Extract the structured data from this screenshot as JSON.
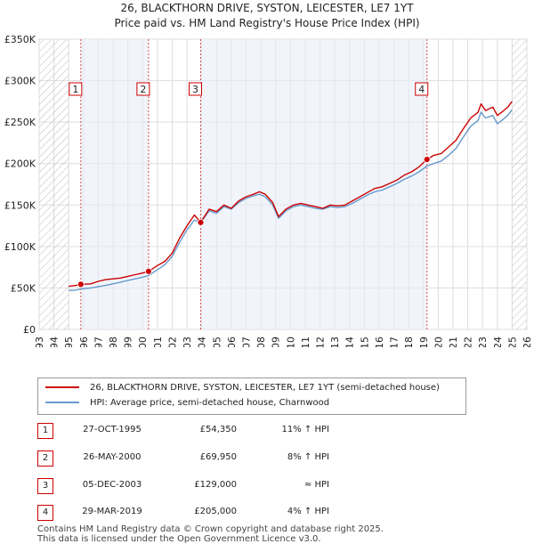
{
  "chart_data": {
    "type": "line",
    "title": "26, BLACKTHORN DRIVE, SYSTON, LEICESTER, LE7 1YT",
    "subtitle": "Price paid vs. HM Land Registry's House Price Index (HPI)",
    "xlim": [
      1993,
      2026
    ],
    "ylim": [
      0,
      350000
    ],
    "x_ticks": [
      "1993",
      "1994",
      "1995",
      "1996",
      "1997",
      "1998",
      "1999",
      "2000",
      "2001",
      "2002",
      "2003",
      "2004",
      "2005",
      "2006",
      "2007",
      "2008",
      "2009",
      "2010",
      "2011",
      "2012",
      "2013",
      "2014",
      "2015",
      "2016",
      "2017",
      "2018",
      "2019",
      "2020",
      "2021",
      "2022",
      "2023",
      "2024",
      "2025",
      "2026"
    ],
    "y_ticks": [
      {
        "value": 0,
        "label": "£0"
      },
      {
        "value": 50000,
        "label": "£50K"
      },
      {
        "value": 100000,
        "label": "£100K"
      },
      {
        "value": 150000,
        "label": "£150K"
      },
      {
        "value": 200000,
        "label": "£200K"
      },
      {
        "value": 250000,
        "label": "£250K"
      },
      {
        "value": 300000,
        "label": "£300K"
      },
      {
        "value": 350000,
        "label": "£350K"
      }
    ],
    "hatched_ranges": [
      [
        1993,
        1995.0
      ],
      [
        2025.0,
        2026
      ]
    ],
    "shaded_ranges": [
      [
        1995.82,
        2000.4
      ],
      [
        2003.93,
        2019.24
      ]
    ],
    "series": [
      {
        "name": "26, BLACKTHORN DRIVE, SYSTON, LEICESTER, LE7 1YT (semi-detached house)",
        "color": "#cc0000",
        "x": [
          1995.0,
          1995.5,
          1995.82,
          1996.5,
          1997,
          1997.5,
          1998,
          1998.5,
          1999,
          1999.5,
          2000,
          2000.4,
          2001,
          2001.5,
          2002,
          2002.5,
          2003,
          2003.5,
          2003.93,
          2004.5,
          2005,
          2005.5,
          2006,
          2006.5,
          2007,
          2007.5,
          2007.9,
          2008.3,
          2008.8,
          2009.2,
          2009.7,
          2010.2,
          2010.7,
          2011.2,
          2011.7,
          2012.2,
          2012.7,
          2013.2,
          2013.7,
          2014.2,
          2014.7,
          2015.2,
          2015.7,
          2016.2,
          2016.7,
          2017.2,
          2017.7,
          2018.2,
          2018.7,
          2019.24,
          2019.7,
          2020.2,
          2020.7,
          2021.2,
          2021.7,
          2022.2,
          2022.7,
          2022.9,
          2023.2,
          2023.7,
          2024.0,
          2024.3,
          2024.7,
          2025.0
        ],
        "values": [
          52000,
          53000,
          54350,
          55000,
          58000,
          60000,
          61000,
          62000,
          64000,
          66000,
          68000,
          69950,
          77000,
          82000,
          92000,
          110000,
          125000,
          138000,
          129000,
          145000,
          142000,
          150000,
          146000,
          155000,
          160000,
          163000,
          166000,
          163000,
          153000,
          136000,
          145000,
          150000,
          152000,
          150000,
          148000,
          146000,
          150000,
          149000,
          150000,
          155000,
          160000,
          165000,
          170000,
          172000,
          176000,
          180000,
          186000,
          190000,
          196000,
          205000,
          210000,
          212000,
          220000,
          228000,
          242000,
          255000,
          262000,
          272000,
          264000,
          268000,
          258000,
          262000,
          268000,
          275000
        ]
      },
      {
        "name": "HPI: Average price, semi-detached house, Charnwood",
        "color": "#6699cc",
        "x": [
          1995.0,
          1995.5,
          1995.82,
          1996.5,
          1997,
          1997.5,
          1998,
          1998.5,
          1999,
          1999.5,
          2000,
          2000.4,
          2001,
          2001.5,
          2002,
          2002.5,
          2003,
          2003.5,
          2003.93,
          2004.5,
          2005,
          2005.5,
          2006,
          2006.5,
          2007,
          2007.5,
          2007.9,
          2008.3,
          2008.8,
          2009.2,
          2009.7,
          2010.2,
          2010.7,
          2011.2,
          2011.7,
          2012.2,
          2012.7,
          2013.2,
          2013.7,
          2014.2,
          2014.7,
          2015.2,
          2015.7,
          2016.2,
          2016.7,
          2017.2,
          2017.7,
          2018.2,
          2018.7,
          2019.24,
          2019.7,
          2020.2,
          2020.7,
          2021.2,
          2021.7,
          2022.2,
          2022.7,
          2022.9,
          2023.2,
          2023.7,
          2024.0,
          2024.3,
          2024.7,
          2025.0
        ],
        "values": [
          47000,
          47500,
          48900,
          50000,
          51500,
          53000,
          55000,
          57000,
          59000,
          61000,
          63000,
          64800,
          72000,
          78000,
          88000,
          105000,
          120000,
          132000,
          129000,
          143000,
          140000,
          148000,
          145000,
          153000,
          158000,
          161000,
          163000,
          160000,
          150000,
          134000,
          143000,
          148000,
          150000,
          148000,
          146000,
          145000,
          148000,
          147000,
          148000,
          152000,
          157000,
          162000,
          166000,
          168000,
          172000,
          176000,
          181000,
          185000,
          190000,
          197000,
          200000,
          203000,
          210000,
          218000,
          232000,
          245000,
          252000,
          262000,
          255000,
          258000,
          248000,
          252000,
          258000,
          265000
        ]
      }
    ],
    "markers": [
      {
        "label": "1",
        "x": 1995.82,
        "y": 54350
      },
      {
        "label": "2",
        "x": 2000.4,
        "y": 69950
      },
      {
        "label": "3",
        "x": 2003.93,
        "y": 129000
      },
      {
        "label": "4",
        "x": 2019.24,
        "y": 205000
      }
    ]
  },
  "legend": {
    "property": "26, BLACKTHORN DRIVE, SYSTON, LEICESTER, LE7 1YT (semi-detached house)",
    "hpi": "HPI: Average price, semi-detached house, Charnwood"
  },
  "transactions": [
    {
      "num": "1",
      "date": "27-OCT-1995",
      "price": "£54,350",
      "hpi": "11% ↑ HPI"
    },
    {
      "num": "2",
      "date": "26-MAY-2000",
      "price": "£69,950",
      "hpi": "8% ↑ HPI"
    },
    {
      "num": "3",
      "date": "05-DEC-2003",
      "price": "£129,000",
      "hpi": "≈ HPI"
    },
    {
      "num": "4",
      "date": "29-MAR-2019",
      "price": "£205,000",
      "hpi": "4% ↑ HPI"
    }
  ],
  "footer": {
    "line1": "Contains HM Land Registry data © Crown copyright and database right 2025.",
    "line2": "This data is licensed under the Open Government Licence v3.0."
  }
}
